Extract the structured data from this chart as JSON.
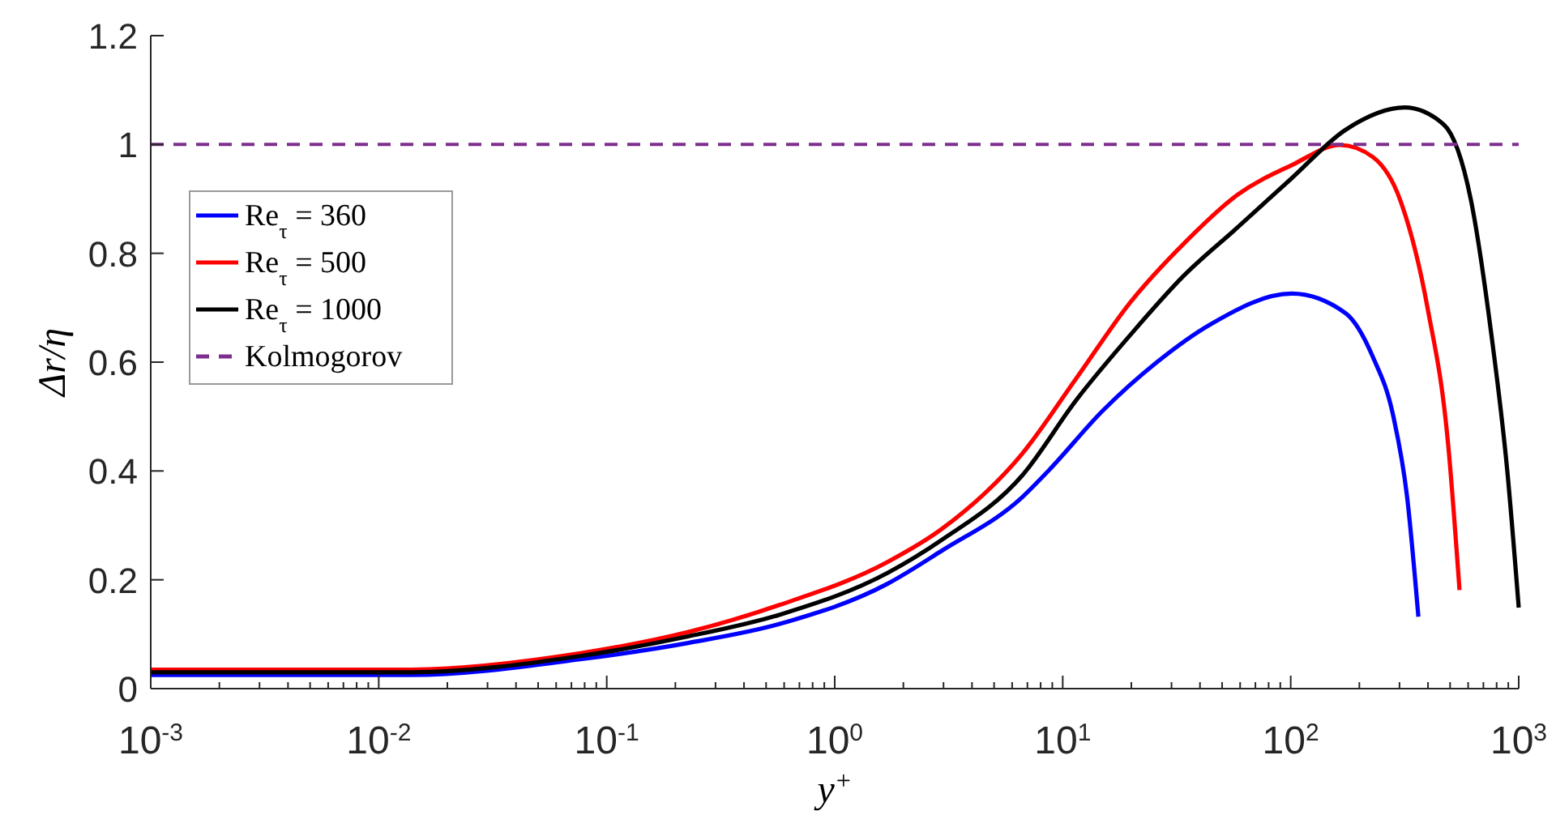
{
  "chart_data": {
    "type": "line",
    "xlabel": "y$^{+}$",
    "ylabel": "Δr/η",
    "log": "x",
    "grid": false,
    "legend": "top left",
    "line_style": "solid",
    "marker": "none",
    "xlim": [
      0.001,
      1000
    ],
    "ylim": [
      0,
      1.2
    ],
    "xticks": [
      {
        "value": 0.001,
        "label": "10$^{-3}$"
      },
      {
        "value": 0.01,
        "label": "10$^{-2}$"
      },
      {
        "value": 0.1,
        "label": "10$^{-1}$"
      },
      {
        "value": 1,
        "label": "10$^{0}$"
      },
      {
        "value": 10,
        "label": "10$^{1}$"
      },
      {
        "value": 100,
        "label": "10$^{2}$"
      },
      {
        "value": 1000,
        "label": "10$^{3}$"
      },
      {
        "value": 0.002,
        "label": null
      },
      {
        "value": 0.003,
        "label": null
      },
      {
        "value": 0.004,
        "label": null
      },
      {
        "value": 0.005,
        "label": null
      },
      {
        "value": 0.006,
        "label": null
      },
      {
        "value": 0.007,
        "label": null
      },
      {
        "value": 0.008,
        "label": null
      },
      {
        "value": 0.009,
        "label": null
      },
      {
        "value": 0.02,
        "label": null
      },
      {
        "value": 0.03,
        "label": null
      },
      {
        "value": 0.04,
        "label": null
      },
      {
        "value": 0.05,
        "label": null
      },
      {
        "value": 0.06,
        "label": null
      },
      {
        "value": 0.07,
        "label": null
      },
      {
        "value": 0.08,
        "label": null
      },
      {
        "value": 0.09,
        "label": null
      },
      {
        "value": 0.2,
        "label": null
      },
      {
        "value": 0.3,
        "label": null
      },
      {
        "value": 0.4,
        "label": null
      },
      {
        "value": 0.5,
        "label": null
      },
      {
        "value": 0.6,
        "label": null
      },
      {
        "value": 0.7,
        "label": null
      },
      {
        "value": 0.8,
        "label": null
      },
      {
        "value": 0.9,
        "label": null
      },
      {
        "value": 2,
        "label": null
      },
      {
        "value": 3,
        "label": null
      },
      {
        "value": 4,
        "label": null
      },
      {
        "value": 5,
        "label": null
      },
      {
        "value": 6,
        "label": null
      },
      {
        "value": 7,
        "label": null
      },
      {
        "value": 8,
        "label": null
      },
      {
        "value": 9,
        "label": null
      },
      {
        "value": 20,
        "label": null
      },
      {
        "value": 30,
        "label": null
      },
      {
        "value": 40,
        "label": null
      },
      {
        "value": 50,
        "label": null
      },
      {
        "value": 60,
        "label": null
      },
      {
        "value": 70,
        "label": null
      },
      {
        "value": 80,
        "label": null
      },
      {
        "value": 90,
        "label": null
      },
      {
        "value": 200,
        "label": null
      },
      {
        "value": 300,
        "label": null
      },
      {
        "value": 400,
        "label": null
      },
      {
        "value": 500,
        "label": null
      },
      {
        "value": 600,
        "label": null
      },
      {
        "value": 700,
        "label": null
      },
      {
        "value": 800,
        "label": null
      },
      {
        "value": 900,
        "label": null
      }
    ],
    "yticks": [
      0,
      0.2,
      0.4,
      0.6,
      0.8,
      1,
      1.2
    ],
    "series": [
      {
        "name": "Re$_{τ}$ = 360",
        "color": "#0000ff",
        "x": [
          0.001,
          0.0135,
          0.0766,
          0.228,
          0.575,
          1.71,
          2.94,
          6.65,
          8.73,
          15.0,
          25.9,
          44.7,
          101,
          174,
          229,
          282,
          324,
          363
        ],
        "values": [
          0.025,
          0.025,
          0.054,
          0.084,
          0.119,
          0.193,
          0.253,
          0.352,
          0.402,
          0.511,
          0.6,
          0.67,
          0.726,
          0.69,
          0.61,
          0.5,
          0.352,
          0.132
        ]
      },
      {
        "name": "Re$_{τ}$ = 500",
        "color": "#ff0000",
        "x": [
          0.001,
          0.0135,
          0.0766,
          0.228,
          0.575,
          1.71,
          2.94,
          6.65,
          11.5,
          19.8,
          34.0,
          58.6,
          101,
          165,
          229,
          302,
          398,
          490,
          550
        ],
        "values": [
          0.035,
          0.035,
          0.065,
          0.104,
          0.154,
          0.233,
          0.293,
          0.432,
          0.571,
          0.71,
          0.818,
          0.908,
          0.962,
          0.999,
          0.977,
          0.898,
          0.7,
          0.45,
          0.181
        ]
      },
      {
        "name": "Re$_{τ}$ = 1000",
        "color": "#000000",
        "x": [
          0.001,
          0.0135,
          0.0766,
          0.228,
          0.575,
          1.71,
          2.94,
          6.65,
          11.5,
          19.8,
          34.0,
          58.6,
          101,
          174,
          316,
          468,
          617,
          759,
          891,
          1000
        ],
        "values": [
          0.03,
          0.03,
          0.06,
          0.096,
          0.136,
          0.213,
          0.273,
          0.392,
          0.531,
          0.65,
          0.759,
          0.848,
          0.938,
          1.027,
          1.068,
          1.037,
          0.898,
          0.65,
          0.4,
          0.149
        ]
      }
    ],
    "ref_lines": [
      {
        "axis": "y",
        "value": 1,
        "label": "Kolmogorov",
        "color": "#7e2f8e",
        "line_style": "dashed"
      }
    ]
  }
}
